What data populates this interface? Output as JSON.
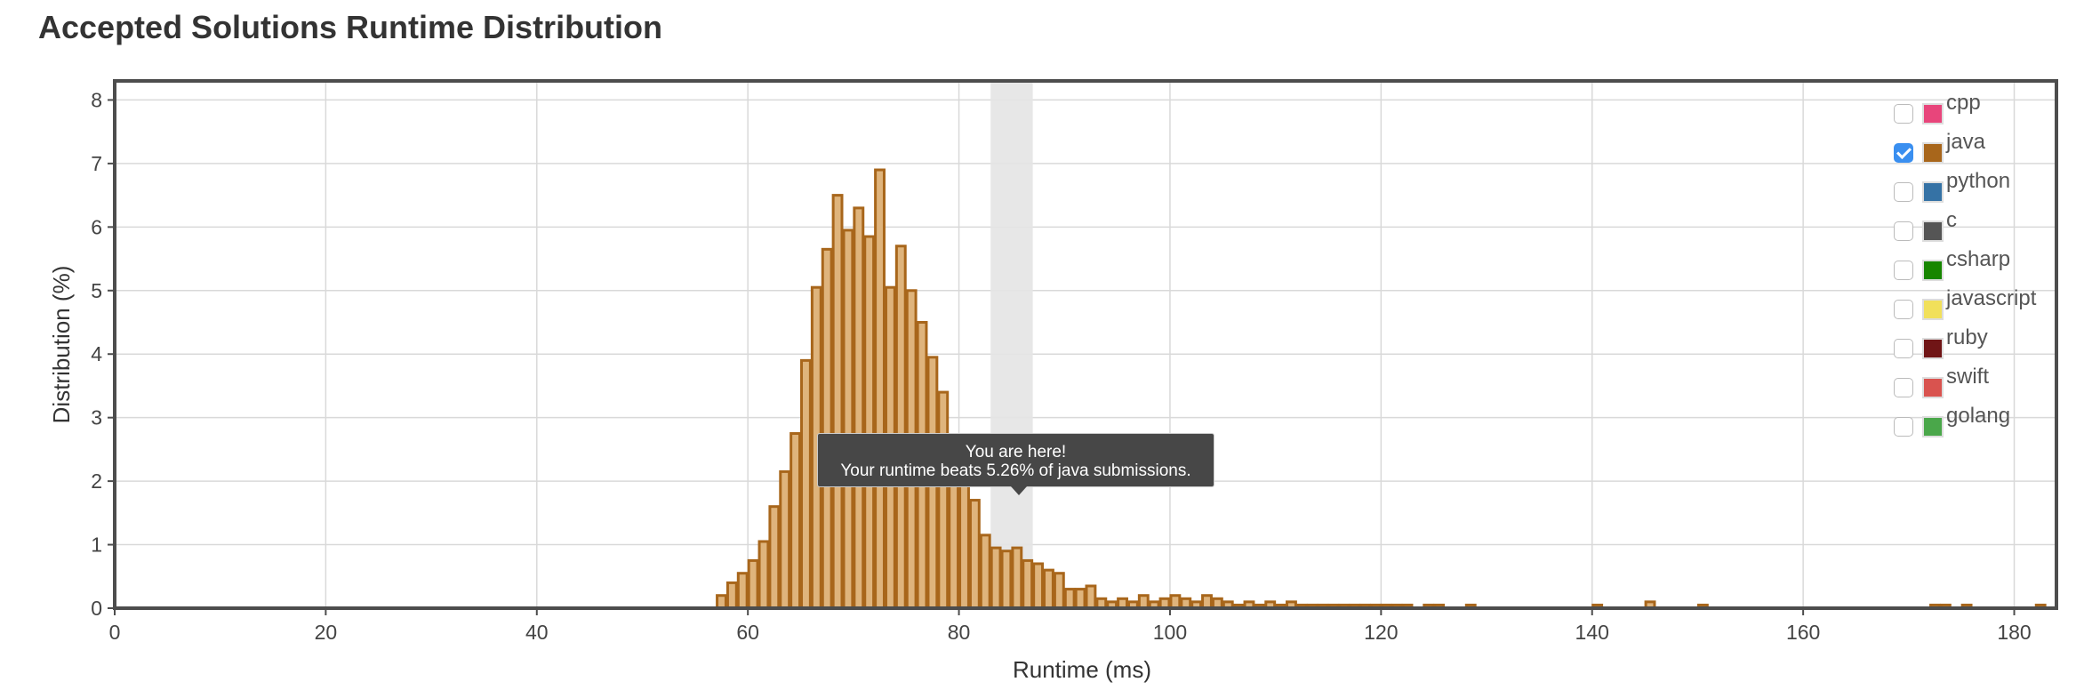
{
  "title": "Accepted Solutions Runtime Distribution",
  "tooltip": {
    "line1": "You are here!",
    "line2": "Your runtime beats 5.26% of java submissions."
  },
  "legend": [
    {
      "label": "cpp",
      "color": "#e8457b",
      "checked": false
    },
    {
      "label": "java",
      "color": "#a8661b",
      "checked": true
    },
    {
      "label": "python",
      "color": "#3572a5",
      "checked": false
    },
    {
      "label": "c",
      "color": "#555555",
      "checked": false
    },
    {
      "label": "csharp",
      "color": "#178600",
      "checked": false
    },
    {
      "label": "javascript",
      "color": "#f1e05a",
      "checked": false
    },
    {
      "label": "ruby",
      "color": "#701516",
      "checked": false
    },
    {
      "label": "swift",
      "color": "#d9534f",
      "checked": false
    },
    {
      "label": "golang",
      "color": "#4aa74a",
      "checked": false
    }
  ],
  "chart_data": {
    "type": "bar",
    "series_name": "java",
    "xlabel": "Runtime (ms)",
    "ylabel": "Distribution (%)",
    "xlim": [
      0,
      184
    ],
    "ylim": [
      0,
      8.3
    ],
    "xticks": [
      0,
      20,
      40,
      60,
      80,
      100,
      120,
      140,
      160,
      180
    ],
    "yticks": [
      0,
      1,
      2,
      3,
      4,
      5,
      6,
      7,
      8
    ],
    "bin_width": 1,
    "highlight_range": [
      83,
      87
    ],
    "grid": true,
    "legend_position": "top-right",
    "bar_color": "#a8661b",
    "bar_fill": "#dfb47c",
    "bins": [
      [
        57,
        0.2
      ],
      [
        58,
        0.4
      ],
      [
        59,
        0.55
      ],
      [
        60,
        0.75
      ],
      [
        61,
        1.05
      ],
      [
        62,
        1.6
      ],
      [
        63,
        2.15
      ],
      [
        64,
        2.75
      ],
      [
        65,
        3.9
      ],
      [
        66,
        5.05
      ],
      [
        67,
        5.65
      ],
      [
        68,
        6.5
      ],
      [
        69,
        5.95
      ],
      [
        70,
        6.3
      ],
      [
        71,
        5.85
      ],
      [
        72,
        6.9
      ],
      [
        73,
        5.05
      ],
      [
        74,
        5.7
      ],
      [
        75,
        5.0
      ],
      [
        76,
        4.5
      ],
      [
        77,
        3.95
      ],
      [
        78,
        3.4
      ],
      [
        79,
        2.7
      ],
      [
        80,
        2.05
      ],
      [
        81,
        1.7
      ],
      [
        82,
        1.15
      ],
      [
        83,
        0.95
      ],
      [
        84,
        0.9
      ],
      [
        85,
        0.95
      ],
      [
        86,
        0.75
      ],
      [
        87,
        0.7
      ],
      [
        88,
        0.6
      ],
      [
        89,
        0.55
      ],
      [
        90,
        0.3
      ],
      [
        91,
        0.3
      ],
      [
        92,
        0.35
      ],
      [
        93,
        0.15
      ],
      [
        94,
        0.1
      ],
      [
        95,
        0.15
      ],
      [
        96,
        0.1
      ],
      [
        97,
        0.2
      ],
      [
        98,
        0.1
      ],
      [
        99,
        0.15
      ],
      [
        100,
        0.2
      ],
      [
        101,
        0.15
      ],
      [
        102,
        0.1
      ],
      [
        103,
        0.2
      ],
      [
        104,
        0.15
      ],
      [
        105,
        0.1
      ],
      [
        106,
        0.05
      ],
      [
        107,
        0.1
      ],
      [
        108,
        0.05
      ],
      [
        109,
        0.1
      ],
      [
        110,
        0.05
      ],
      [
        111,
        0.1
      ],
      [
        112,
        0.05
      ],
      [
        113,
        0.05
      ],
      [
        114,
        0.05
      ],
      [
        115,
        0.05
      ],
      [
        116,
        0.05
      ],
      [
        117,
        0.05
      ],
      [
        118,
        0.05
      ],
      [
        119,
        0.05
      ],
      [
        120,
        0.05
      ],
      [
        121,
        0.05
      ],
      [
        122,
        0.05
      ],
      [
        124,
        0.05
      ],
      [
        125,
        0.05
      ],
      [
        128,
        0.05
      ],
      [
        140,
        0.05
      ],
      [
        145,
        0.1
      ],
      [
        150,
        0.05
      ],
      [
        172,
        0.05
      ],
      [
        173,
        0.05
      ],
      [
        175,
        0.05
      ],
      [
        182,
        0.05
      ]
    ]
  }
}
